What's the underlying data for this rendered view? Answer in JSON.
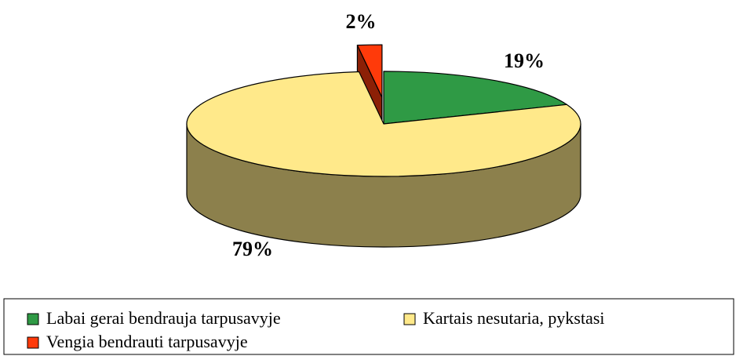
{
  "chart_data": {
    "type": "pie3d",
    "categories": [
      "Labai gerai bendrauja tarpusavyje",
      "Kartais nesutaria, pykstasi",
      "Vengia bendrauti tarpusavyje"
    ],
    "values": [
      19,
      79,
      2
    ],
    "value_labels": [
      "19%",
      "79%",
      "2%"
    ],
    "colors": [
      "#2f9a45",
      "#ffe98a",
      "#ff3a0a"
    ],
    "exploded": [
      false,
      false,
      true
    ],
    "legend": "bottom"
  }
}
